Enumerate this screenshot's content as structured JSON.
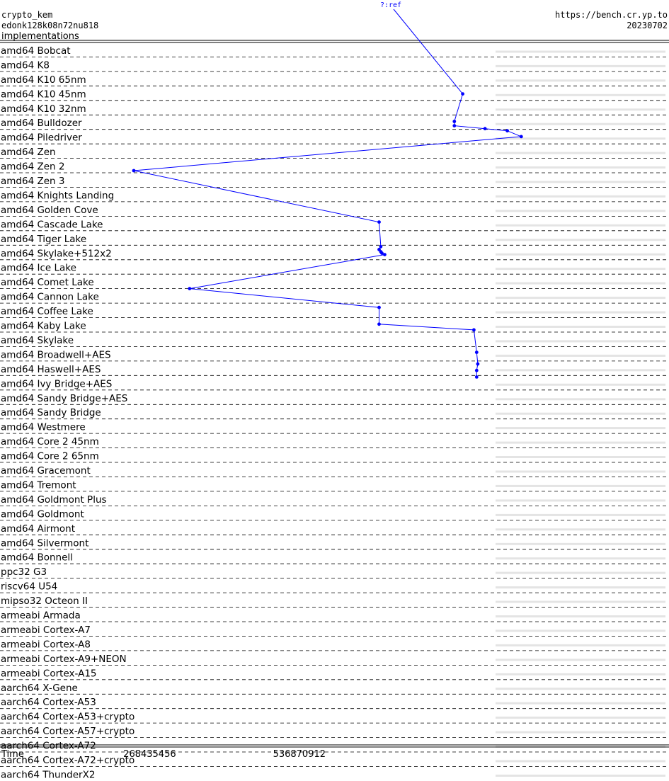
{
  "header": {
    "primitive": "crypto_kem",
    "implementation": "edonk128k08n72nu818",
    "subtitle": "implementations",
    "url": "https://bench.cr.yp.to",
    "date": "20230702",
    "ref_label": "?:ref"
  },
  "chart_data": {
    "type": "line",
    "xlabel": "Time",
    "x_ticks": [
      268435456,
      536870912
    ],
    "xlim": [
      0,
      1200000000
    ],
    "categories": [
      "amd64 Bobcat",
      "amd64 K8",
      "amd64 K10 65nm",
      "amd64 K10 45nm",
      "amd64 K10 32nm",
      "amd64 Bulldozer",
      "amd64 Piledriver",
      "amd64 Zen",
      "amd64 Zen 2",
      "amd64 Zen 3",
      "amd64 Knights Landing",
      "amd64 Golden Cove",
      "amd64 Cascade Lake",
      "amd64 Tiger Lake",
      "amd64 Skylake+512x2",
      "amd64 Ice Lake",
      "amd64 Comet Lake",
      "amd64 Cannon Lake",
      "amd64 Coffee Lake",
      "amd64 Kaby Lake",
      "amd64 Skylake",
      "amd64 Broadwell+AES",
      "amd64 Haswell+AES",
      "amd64 Ivy Bridge+AES",
      "amd64 Sandy Bridge+AES",
      "amd64 Sandy Bridge",
      "amd64 Westmere",
      "amd64 Core 2 45nm",
      "amd64 Core 2 65nm",
      "amd64 Gracemont",
      "amd64 Tremont",
      "amd64 Goldmont Plus",
      "amd64 Goldmont",
      "amd64 Airmont",
      "amd64 Silvermont",
      "amd64 Bonnell",
      "ppc32 G3",
      "riscv64 U54",
      "mipso32 Octeon II",
      "armeabi Armada",
      "armeabi Cortex-A7",
      "armeabi Cortex-A8",
      "armeabi Cortex-A9+NEON",
      "armeabi Cortex-A15",
      "aarch64 X-Gene",
      "aarch64 Cortex-A53",
      "aarch64 Cortex-A53+crypto",
      "aarch64 Cortex-A57+crypto",
      "aarch64 Cortex-A72",
      "aarch64 Cortex-A72+crypto",
      "aarch64 ThunderX2"
    ],
    "points": [
      {
        "cat": 3,
        "sub": 0.55,
        "x": 830000000
      },
      {
        "cat": 5,
        "sub": 0.45,
        "x": 815000000
      },
      {
        "cat": 5,
        "sub": 0.75,
        "x": 815000000
      },
      {
        "cat": 5,
        "sub": 0.95,
        "x": 870000000
      },
      {
        "cat": 6,
        "sub": 0.1,
        "x": 910000000
      },
      {
        "cat": 6,
        "sub": 0.5,
        "x": 935000000
      },
      {
        "cat": 8,
        "sub": 0.85,
        "x": 240000000
      },
      {
        "cat": 12,
        "sub": 0.4,
        "x": 680000000
      },
      {
        "cat": 14,
        "sub": 0.1,
        "x": 683000000
      },
      {
        "cat": 14,
        "sub": 0.3,
        "x": 680000000
      },
      {
        "cat": 14,
        "sub": 0.45,
        "x": 683000000
      },
      {
        "cat": 14,
        "sub": 0.55,
        "x": 685000000
      },
      {
        "cat": 14,
        "sub": 0.65,
        "x": 690000000
      },
      {
        "cat": 17,
        "sub": 0.0,
        "x": 340000000
      },
      {
        "cat": 18,
        "sub": 0.3,
        "x": 680000000
      },
      {
        "cat": 19,
        "sub": 0.45,
        "x": 680000000
      },
      {
        "cat": 19,
        "sub": 0.85,
        "x": 850000000
      },
      {
        "cat": 21,
        "sub": 0.4,
        "x": 855000000
      },
      {
        "cat": 22,
        "sub": 0.2,
        "x": 857000000
      },
      {
        "cat": 22,
        "sub": 0.65,
        "x": 855000000
      },
      {
        "cat": 23,
        "sub": 0.1,
        "x": 855000000
      }
    ]
  }
}
